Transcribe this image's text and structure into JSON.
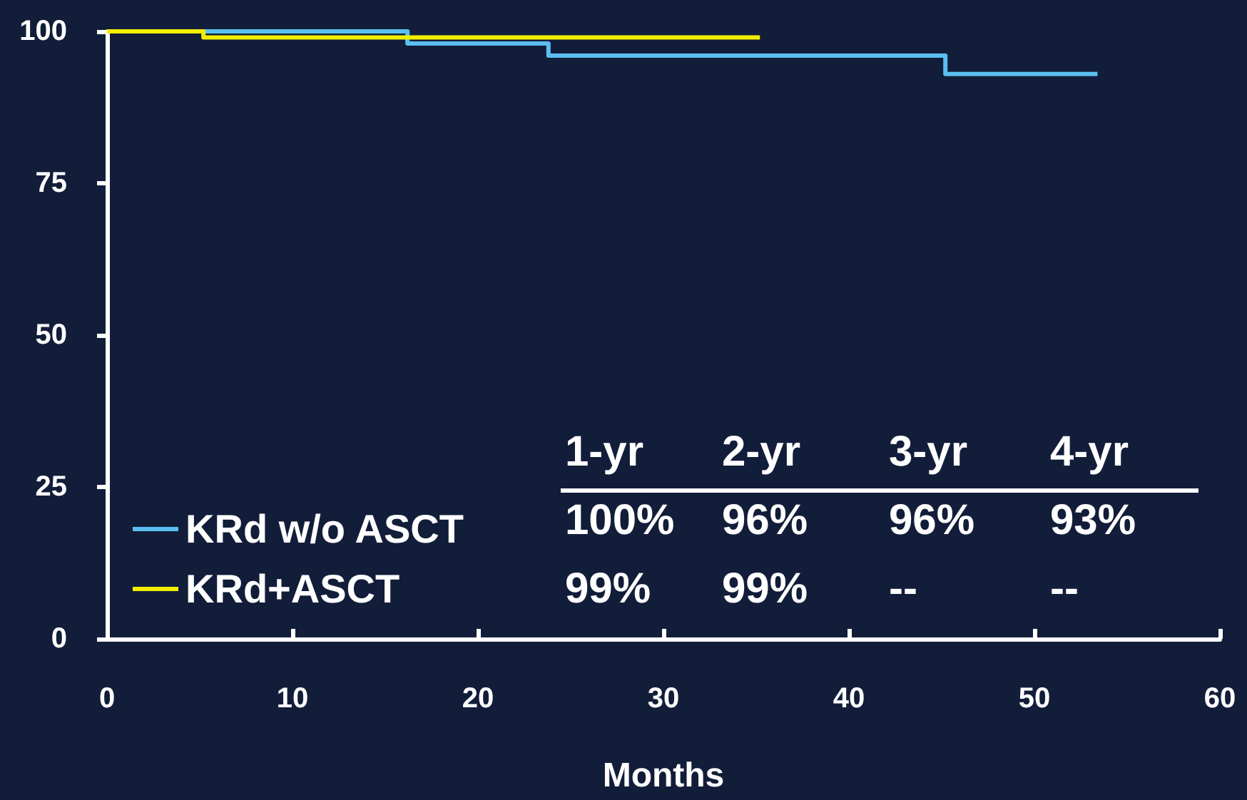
{
  "chart_data": {
    "type": "step",
    "xlabel": "Months",
    "xlim": [
      0,
      60
    ],
    "xticks": [
      0,
      10,
      20,
      30,
      40,
      50,
      60
    ],
    "ylim": [
      0,
      100
    ],
    "yticks": [
      0,
      25,
      50,
      75,
      100
    ],
    "grid": false,
    "legend": "bottom left",
    "series": [
      {
        "name": "KRd w/o ASCT",
        "color": "#5bc0f0",
        "x": [
          0,
          16.2,
          23.8,
          45.2,
          53.4
        ],
        "values": [
          100,
          98,
          96,
          93,
          93
        ]
      },
      {
        "name": "KRd+ASCT",
        "color": "#f2ee00",
        "x": [
          0,
          5.2,
          35.2
        ],
        "values": [
          100,
          99,
          99
        ]
      }
    ],
    "annotations": [
      "1-yr",
      "2-yr",
      "3-yr",
      "4-yr",
      "100%",
      "96%",
      "96%",
      "93%",
      "99%",
      "99%",
      "--",
      "--"
    ]
  }
}
